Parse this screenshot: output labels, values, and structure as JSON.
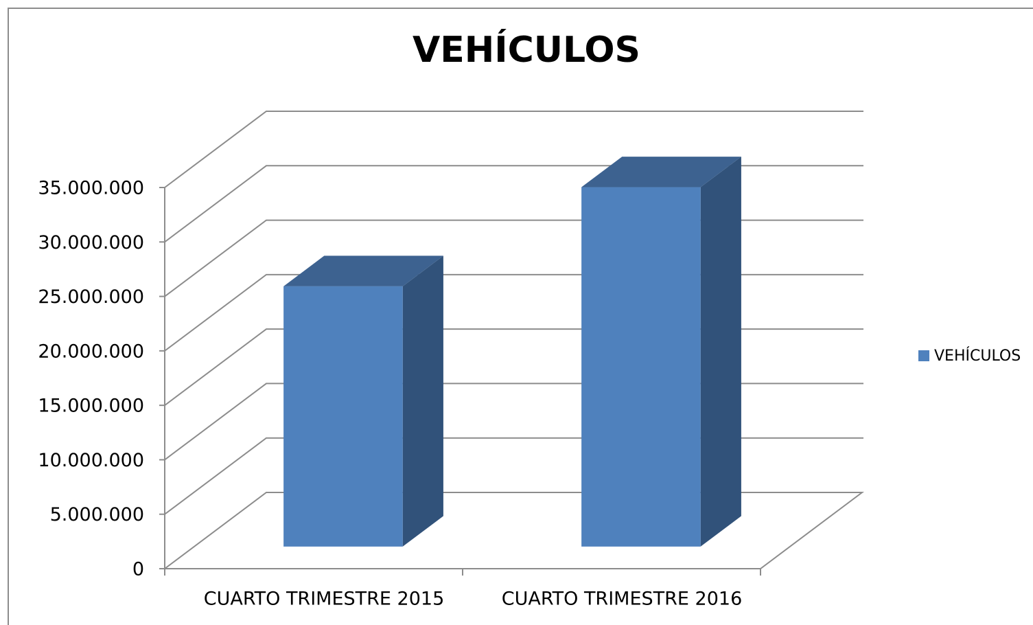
{
  "chart_data": {
    "type": "bar3d",
    "title": "VEHÍCULOS",
    "categories": [
      "CUARTO TRIMESTRE 2015",
      "CUARTO TRIMESTRE 2016"
    ],
    "series": [
      {
        "name": "VEHÍCULOS",
        "color": "#4f81bd",
        "values": [
          23900000,
          33000000
        ]
      }
    ],
    "ylim": [
      0,
      35000000
    ],
    "yticks": [
      0,
      {
        "value": 5000000,
        "label": "5.000.000"
      },
      {
        "value": 10000000,
        "label": "10.000.000"
      },
      {
        "value": 15000000,
        "label": "15.000.000"
      },
      {
        "value": 20000000,
        "label": "20.000.000"
      },
      {
        "value": 25000000,
        "label": "25.000.000"
      },
      {
        "value": 30000000,
        "label": "30.000.000"
      },
      {
        "value": 35000000,
        "label": "35.000.000"
      }
    ],
    "grid": true,
    "legend": "right"
  }
}
